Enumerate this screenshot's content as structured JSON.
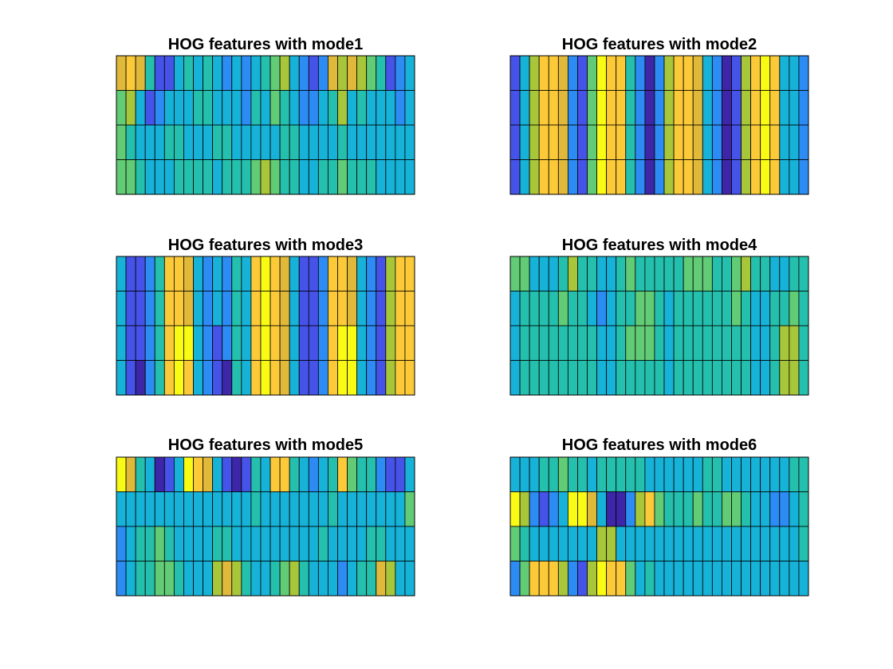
{
  "figure": {
    "colormap": [
      "#3e26a8",
      "#4653e9",
      "#2d8cf4",
      "#16b2d7",
      "#24c0ad",
      "#61cb76",
      "#a8c63a",
      "#e0b93a",
      "#fcca39",
      "#f9fb15"
    ]
  },
  "chart_data": [
    {
      "type": "heatmap",
      "title": "HOG features with mode1",
      "rows": 4,
      "cols": 31,
      "values": [
        [
          7,
          8,
          7,
          4,
          1,
          1,
          3,
          4,
          3,
          4,
          3,
          2,
          3,
          2,
          3,
          4,
          5,
          6,
          3,
          2,
          1,
          2,
          7,
          6,
          7,
          6,
          5,
          4,
          1,
          2,
          3
        ],
        [
          5,
          6,
          3,
          1,
          2,
          3,
          3,
          3,
          4,
          4,
          3,
          3,
          3,
          2,
          4,
          3,
          5,
          4,
          3,
          2,
          2,
          3,
          4,
          6,
          3,
          4,
          3,
          3,
          3,
          2,
          3
        ],
        [
          5,
          4,
          3,
          3,
          3,
          4,
          4,
          3,
          3,
          3,
          4,
          4,
          3,
          3,
          3,
          3,
          3,
          4,
          4,
          3,
          3,
          3,
          3,
          4,
          3,
          3,
          3,
          3,
          3,
          3,
          3
        ],
        [
          5,
          5,
          4,
          3,
          3,
          3,
          4,
          4,
          4,
          4,
          3,
          4,
          4,
          4,
          5,
          6,
          5,
          4,
          4,
          3,
          3,
          4,
          4,
          5,
          4,
          4,
          4,
          3,
          3,
          3,
          3
        ]
      ]
    },
    {
      "type": "heatmap",
      "title": "HOG features with mode2",
      "rows": 4,
      "cols": 31,
      "values": [
        [
          1,
          3,
          6,
          8,
          8,
          7,
          2,
          1,
          5,
          9,
          8,
          8,
          4,
          2,
          0,
          2,
          6,
          8,
          8,
          7,
          3,
          2,
          0,
          1,
          6,
          8,
          9,
          8,
          3,
          3,
          2
        ],
        [
          1,
          3,
          6,
          8,
          8,
          7,
          2,
          1,
          5,
          9,
          8,
          8,
          4,
          2,
          0,
          2,
          6,
          8,
          8,
          7,
          3,
          2,
          0,
          1,
          6,
          8,
          9,
          8,
          3,
          3,
          2
        ],
        [
          1,
          3,
          6,
          8,
          8,
          7,
          2,
          1,
          5,
          9,
          8,
          8,
          4,
          2,
          0,
          2,
          6,
          8,
          8,
          7,
          3,
          2,
          0,
          1,
          6,
          8,
          9,
          8,
          3,
          3,
          2
        ],
        [
          1,
          3,
          6,
          8,
          8,
          7,
          2,
          1,
          5,
          9,
          8,
          8,
          4,
          2,
          0,
          2,
          6,
          8,
          8,
          7,
          3,
          2,
          0,
          1,
          6,
          8,
          9,
          8,
          3,
          3,
          2
        ]
      ]
    },
    {
      "type": "heatmap",
      "title": "HOG features with mode3",
      "rows": 4,
      "cols": 31,
      "values": [
        [
          3,
          1,
          1,
          2,
          4,
          8,
          8,
          7,
          3,
          2,
          3,
          2,
          4,
          3,
          8,
          9,
          8,
          7,
          3,
          1,
          1,
          2,
          8,
          8,
          7,
          3,
          2,
          1,
          6,
          8,
          8
        ],
        [
          3,
          1,
          1,
          2,
          4,
          8,
          8,
          7,
          3,
          2,
          3,
          2,
          4,
          3,
          8,
          9,
          8,
          7,
          3,
          1,
          1,
          2,
          8,
          8,
          7,
          3,
          2,
          1,
          6,
          8,
          8
        ],
        [
          3,
          1,
          1,
          2,
          4,
          8,
          9,
          9,
          3,
          2,
          1,
          2,
          4,
          3,
          8,
          9,
          8,
          7,
          3,
          1,
          1,
          2,
          8,
          9,
          9,
          3,
          2,
          1,
          6,
          8,
          8
        ],
        [
          3,
          1,
          0,
          2,
          4,
          8,
          9,
          8,
          3,
          2,
          1,
          0,
          4,
          3,
          8,
          9,
          8,
          7,
          3,
          1,
          1,
          2,
          8,
          9,
          9,
          3,
          2,
          1,
          6,
          8,
          8
        ]
      ]
    },
    {
      "type": "heatmap",
      "title": "HOG features with mode4",
      "rows": 4,
      "cols": 31,
      "values": [
        [
          5,
          5,
          3,
          3,
          3,
          4,
          6,
          4,
          4,
          3,
          3,
          4,
          5,
          4,
          4,
          4,
          4,
          4,
          5,
          5,
          5,
          4,
          4,
          5,
          6,
          4,
          4,
          3,
          3,
          4,
          4
        ],
        [
          3,
          4,
          4,
          4,
          4,
          5,
          4,
          4,
          3,
          2,
          3,
          4,
          4,
          5,
          5,
          4,
          3,
          4,
          4,
          4,
          4,
          4,
          4,
          5,
          4,
          3,
          3,
          4,
          4,
          5,
          4
        ],
        [
          3,
          4,
          4,
          4,
          4,
          4,
          4,
          4,
          4,
          3,
          3,
          4,
          5,
          5,
          5,
          4,
          3,
          4,
          4,
          4,
          4,
          4,
          4,
          4,
          4,
          3,
          3,
          4,
          6,
          6,
          4
        ],
        [
          3,
          4,
          4,
          4,
          4,
          4,
          4,
          4,
          4,
          3,
          3,
          4,
          4,
          4,
          4,
          4,
          3,
          4,
          4,
          4,
          4,
          4,
          4,
          4,
          4,
          3,
          3,
          4,
          6,
          6,
          4
        ]
      ]
    },
    {
      "type": "heatmap",
      "title": "HOG features with mode5",
      "rows": 4,
      "cols": 31,
      "values": [
        [
          9,
          7,
          4,
          3,
          0,
          1,
          3,
          9,
          8,
          7,
          3,
          1,
          0,
          1,
          4,
          3,
          8,
          8,
          4,
          3,
          2,
          3,
          4,
          8,
          5,
          4,
          4,
          2,
          1,
          1,
          3
        ],
        [
          3,
          3,
          3,
          3,
          3,
          3,
          3,
          3,
          3,
          3,
          3,
          3,
          3,
          3,
          4,
          3,
          3,
          3,
          3,
          3,
          3,
          3,
          4,
          3,
          3,
          3,
          3,
          3,
          3,
          3,
          5
        ],
        [
          2,
          3,
          4,
          4,
          5,
          4,
          3,
          3,
          3,
          3,
          4,
          4,
          3,
          3,
          3,
          3,
          3,
          3,
          3,
          3,
          3,
          4,
          3,
          3,
          3,
          3,
          4,
          4,
          3,
          3,
          3
        ],
        [
          2,
          3,
          4,
          4,
          5,
          5,
          4,
          3,
          3,
          3,
          6,
          7,
          6,
          4,
          3,
          3,
          4,
          5,
          6,
          4,
          3,
          3,
          3,
          2,
          3,
          4,
          4,
          7,
          6,
          3,
          3
        ]
      ]
    },
    {
      "type": "heatmap",
      "title": "HOG features with mode6",
      "rows": 4,
      "cols": 31,
      "values": [
        [
          3,
          3,
          3,
          4,
          4,
          5,
          4,
          4,
          3,
          4,
          4,
          4,
          4,
          4,
          3,
          3,
          3,
          3,
          3,
          3,
          4,
          4,
          3,
          3,
          3,
          3,
          3,
          3,
          3,
          4,
          4
        ],
        [
          9,
          6,
          2,
          1,
          2,
          3,
          9,
          9,
          7,
          3,
          0,
          0,
          2,
          6,
          8,
          5,
          4,
          4,
          4,
          5,
          4,
          4,
          5,
          5,
          4,
          3,
          3,
          2,
          2,
          3,
          4
        ],
        [
          5,
          4,
          3,
          3,
          3,
          3,
          3,
          3,
          3,
          6,
          6,
          3,
          3,
          3,
          3,
          3,
          3,
          3,
          3,
          3,
          3,
          3,
          3,
          3,
          3,
          3,
          3,
          3,
          3,
          3,
          4
        ],
        [
          2,
          5,
          8,
          8,
          8,
          6,
          2,
          1,
          6,
          9,
          8,
          8,
          5,
          3,
          4,
          3,
          3,
          3,
          3,
          3,
          3,
          3,
          3,
          3,
          3,
          3,
          3,
          3,
          3,
          3,
          3
        ]
      ]
    }
  ]
}
